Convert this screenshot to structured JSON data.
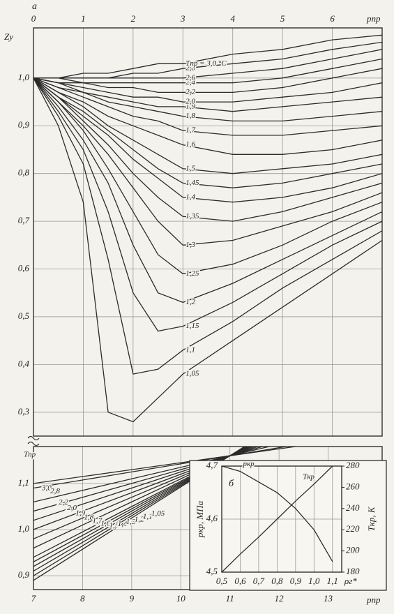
{
  "chart_data": [
    {
      "type": "line",
      "panel_label": "а",
      "x_label": "pпр",
      "y_label": "Zу",
      "x": [
        0,
        0.5,
        1,
        1.5,
        2,
        2.5,
        3,
        4,
        5,
        6,
        7
      ],
      "xlim": [
        0,
        7
      ],
      "xticks": [
        0,
        1,
        2,
        3,
        4,
        5,
        6
      ],
      "ylim": [
        0.25,
        1.105
      ],
      "yticks": [
        {
          "value": 1.0,
          "label": "1,0"
        },
        {
          "value": 0.9,
          "label": "0,9"
        },
        {
          "value": 0.8,
          "label": "0,8"
        },
        {
          "value": 0.7,
          "label": "0,7"
        },
        {
          "value": 0.6,
          "label": "0,6"
        },
        {
          "value": 0.5,
          "label": "0,5"
        },
        {
          "value": 0.4,
          "label": "0,4"
        },
        {
          "value": 0.3,
          "label": "0,3"
        }
      ],
      "grid": true,
      "series": [
        {
          "name": "1,05",
          "color": "#2b2b2b",
          "values": [
            1.0,
            0.9,
            0.74,
            0.3,
            0.28,
            0.33,
            0.38,
            0.45,
            0.52,
            0.59,
            0.66
          ]
        },
        {
          "name": "1,1",
          "color": "#2b2b2b",
          "values": [
            1.0,
            0.92,
            0.82,
            0.62,
            0.38,
            0.39,
            0.43,
            0.49,
            0.56,
            0.62,
            0.68
          ]
        },
        {
          "name": "1,15",
          "color": "#2b2b2b",
          "values": [
            1.0,
            0.93,
            0.85,
            0.72,
            0.55,
            0.47,
            0.48,
            0.53,
            0.59,
            0.65,
            0.7
          ]
        },
        {
          "name": "1,2",
          "color": "#2b2b2b",
          "values": [
            1.0,
            0.94,
            0.87,
            0.78,
            0.65,
            0.55,
            0.53,
            0.57,
            0.62,
            0.67,
            0.72
          ]
        },
        {
          "name": "1,25",
          "color": "#2b2b2b",
          "values": [
            1.0,
            0.95,
            0.89,
            0.81,
            0.72,
            0.63,
            0.59,
            0.61,
            0.65,
            0.7,
            0.74
          ]
        },
        {
          "name": "1,3",
          "color": "#2b2b2b",
          "values": [
            1.0,
            0.95,
            0.9,
            0.84,
            0.77,
            0.7,
            0.65,
            0.66,
            0.69,
            0.72,
            0.76
          ]
        },
        {
          "name": "1,35",
          "color": "#2b2b2b",
          "values": [
            1.0,
            0.96,
            0.91,
            0.86,
            0.8,
            0.75,
            0.71,
            0.7,
            0.72,
            0.75,
            0.78
          ]
        },
        {
          "name": "1,4",
          "color": "#2b2b2b",
          "values": [
            1.0,
            0.96,
            0.92,
            0.88,
            0.83,
            0.79,
            0.75,
            0.74,
            0.75,
            0.77,
            0.8
          ]
        },
        {
          "name": "1,45",
          "color": "#2b2b2b",
          "values": [
            1.0,
            0.96,
            0.93,
            0.89,
            0.85,
            0.81,
            0.78,
            0.77,
            0.78,
            0.8,
            0.82
          ]
        },
        {
          "name": "1,5",
          "color": "#2b2b2b",
          "values": [
            1.0,
            0.97,
            0.94,
            0.9,
            0.87,
            0.84,
            0.81,
            0.8,
            0.81,
            0.82,
            0.84
          ]
        },
        {
          "name": "1,6",
          "color": "#2b2b2b",
          "values": [
            1.0,
            0.97,
            0.95,
            0.92,
            0.9,
            0.88,
            0.86,
            0.84,
            0.84,
            0.85,
            0.87
          ]
        },
        {
          "name": "1,7",
          "color": "#2b2b2b",
          "values": [
            1.0,
            0.98,
            0.96,
            0.94,
            0.92,
            0.91,
            0.89,
            0.88,
            0.88,
            0.89,
            0.9
          ]
        },
        {
          "name": "1,8",
          "color": "#2b2b2b",
          "values": [
            1.0,
            0.98,
            0.97,
            0.95,
            0.94,
            0.93,
            0.92,
            0.91,
            0.91,
            0.92,
            0.93
          ]
        },
        {
          "name": "1,9",
          "color": "#2b2b2b",
          "values": [
            1.0,
            0.99,
            0.97,
            0.96,
            0.95,
            0.94,
            0.94,
            0.93,
            0.94,
            0.95,
            0.96
          ]
        },
        {
          "name": "2,0",
          "color": "#2b2b2b",
          "values": [
            1.0,
            0.99,
            0.98,
            0.97,
            0.96,
            0.96,
            0.95,
            0.95,
            0.96,
            0.97,
            0.99
          ]
        },
        {
          "name": "2,2",
          "color": "#2b2b2b",
          "values": [
            1.0,
            0.99,
            0.99,
            0.98,
            0.98,
            0.97,
            0.97,
            0.97,
            0.98,
            1.0,
            1.02
          ]
        },
        {
          "name": "2,4",
          "color": "#2b2b2b",
          "values": [
            1.0,
            1.0,
            0.99,
            0.99,
            0.99,
            0.99,
            0.99,
            0.99,
            1.0,
            1.02,
            1.04
          ]
        },
        {
          "name": "2,6",
          "color": "#2b2b2b",
          "values": [
            1.0,
            1.0,
            1.0,
            1.0,
            1.0,
            1.0,
            1.0,
            1.01,
            1.02,
            1.04,
            1.06
          ]
        },
        {
          "name": "2,8",
          "color": "#2b2b2b",
          "values": [
            1.0,
            1.0,
            1.0,
            1.0,
            1.01,
            1.01,
            1.02,
            1.03,
            1.04,
            1.06,
            1.075
          ]
        },
        {
          "name": "Tпр = 3,0 °C",
          "color": "#2b2b2b",
          "values": [
            1.0,
            1.0,
            1.01,
            1.01,
            1.02,
            1.03,
            1.03,
            1.05,
            1.06,
            1.08,
            1.09
          ]
        }
      ]
    },
    {
      "type": "line",
      "x_label": "pпр",
      "legend_title": "Tпр",
      "x": [
        7,
        9,
        11,
        13
      ],
      "xlim": [
        7,
        14.1
      ],
      "xticks": [
        7,
        8,
        9,
        10,
        11,
        12,
        13
      ],
      "ylim": [
        0.87,
        1.18
      ],
      "yticks": [
        {
          "value": 1.1,
          "label": "1,1"
        },
        {
          "value": 1.0,
          "label": "1,0"
        },
        {
          "value": 0.9,
          "label": "0,9"
        }
      ],
      "grid": true,
      "series": [
        {
          "name": "3,0",
          "color": "#2b2b2b",
          "values": [
            1.1,
            1.13,
            1.16,
            1.19
          ]
        },
        {
          "name": "2,8",
          "color": "#2b2b2b",
          "values": [
            1.09,
            1.125,
            1.16,
            1.195
          ]
        },
        {
          "name": "2,2",
          "color": "#2b2b2b",
          "values": [
            1.06,
            1.11,
            1.16,
            1.21
          ]
        },
        {
          "name": "2,0",
          "color": "#2b2b2b",
          "values": [
            1.04,
            1.1,
            1.16,
            1.22
          ]
        },
        {
          "name": "1,9",
          "color": "#2b2b2b",
          "values": [
            1.02,
            1.09,
            1.16,
            1.23
          ]
        },
        {
          "name": "1,8",
          "color": "#2b2b2b",
          "values": [
            1.0,
            1.08,
            1.16,
            1.24
          ]
        },
        {
          "name": "1,7",
          "color": "#2b2b2b",
          "values": [
            0.98,
            1.07,
            1.16,
            1.25
          ]
        },
        {
          "name": "1,6",
          "color": "#2b2b2b",
          "values": [
            0.96,
            1.06,
            1.16,
            1.26
          ]
        },
        {
          "name": "1,5",
          "color": "#2b2b2b",
          "values": [
            0.94,
            1.05,
            1.16,
            1.27
          ]
        },
        {
          "name": "1,4",
          "color": "#2b2b2b",
          "values": [
            0.93,
            1.045,
            1.16,
            1.275
          ]
        },
        {
          "name": "1,3",
          "color": "#2b2b2b",
          "values": [
            0.92,
            1.04,
            1.16,
            1.28
          ]
        },
        {
          "name": "1,2",
          "color": "#2b2b2b",
          "values": [
            0.91,
            1.035,
            1.16,
            1.285
          ]
        },
        {
          "name": "1,1",
          "color": "#2b2b2b",
          "values": [
            0.9,
            1.03,
            1.16,
            1.29
          ]
        },
        {
          "name": "1,05",
          "color": "#2b2b2b",
          "values": [
            0.89,
            1.025,
            1.16,
            1.295
          ]
        }
      ]
    },
    {
      "type": "line",
      "panel_label": "б",
      "x_label": "ρг*",
      "y_label": "pкр, МПа",
      "y2_label": "Tкр, К",
      "x": [
        0.5,
        0.6,
        0.7,
        0.8,
        0.9,
        1.0,
        1.1
      ],
      "xlim": [
        0.5,
        1.15
      ],
      "xticks": [
        {
          "value": 0.5,
          "label": "0,5"
        },
        {
          "value": 0.6,
          "label": "0,6"
        },
        {
          "value": 0.7,
          "label": "0,7"
        },
        {
          "value": 0.8,
          "label": "0,8"
        },
        {
          "value": 0.9,
          "label": "0,9"
        },
        {
          "value": 1.0,
          "label": "1,0"
        },
        {
          "value": 1.1,
          "label": "1,1"
        }
      ],
      "ylim": [
        4.5,
        4.7
      ],
      "yticks": [
        {
          "value": 4.5,
          "label": "4,5"
        },
        {
          "value": 4.6,
          "label": "4,6"
        },
        {
          "value": 4.7,
          "label": "4,7"
        }
      ],
      "y2lim": [
        180,
        280
      ],
      "y2ticks": [
        180,
        200,
        220,
        240,
        260,
        280
      ],
      "grid": true,
      "series": [
        {
          "name": "pкр",
          "color": "#2b2b2b",
          "values": [
            4.7,
            4.69,
            4.67,
            4.65,
            4.62,
            4.58,
            4.52
          ]
        },
        {
          "name": "Tкр",
          "color": "#2b2b2b",
          "axis": "y2",
          "values": [
            180,
            197,
            213,
            230,
            247,
            263,
            280
          ]
        }
      ]
    }
  ]
}
